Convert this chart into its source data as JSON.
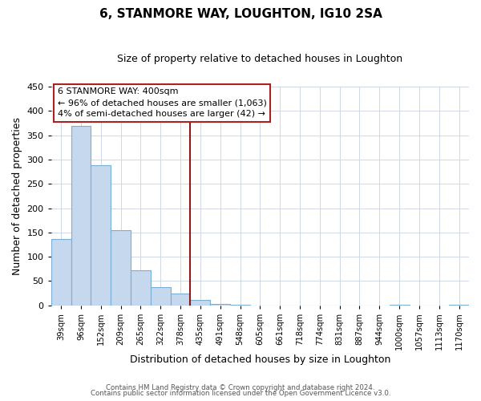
{
  "title": "6, STANMORE WAY, LOUGHTON, IG10 2SA",
  "subtitle": "Size of property relative to detached houses in Loughton",
  "xlabel": "Distribution of detached houses by size in Loughton",
  "ylabel": "Number of detached properties",
  "bar_color": "#c5d8ee",
  "bar_edge_color": "#7bafd4",
  "categories": [
    "39sqm",
    "96sqm",
    "152sqm",
    "209sqm",
    "265sqm",
    "322sqm",
    "378sqm",
    "435sqm",
    "491sqm",
    "548sqm",
    "605sqm",
    "661sqm",
    "718sqm",
    "774sqm",
    "831sqm",
    "887sqm",
    "944sqm",
    "1000sqm",
    "1057sqm",
    "1113sqm",
    "1170sqm"
  ],
  "values": [
    137,
    370,
    288,
    155,
    73,
    37,
    25,
    11,
    3,
    2,
    0,
    0,
    0,
    0,
    0,
    0,
    0,
    2,
    0,
    0,
    2
  ],
  "vline_x_idx": 6,
  "vline_color": "#8b1a1a",
  "ylim": [
    0,
    450
  ],
  "yticks": [
    0,
    50,
    100,
    150,
    200,
    250,
    300,
    350,
    400,
    450
  ],
  "ann_line1": "6 STANMORE WAY: 400sqm",
  "ann_line2": "← 96% of detached houses are smaller (1,063)",
  "ann_line3": "4% of semi-detached houses are larger (42) →",
  "footer_line1": "Contains HM Land Registry data © Crown copyright and database right 2024.",
  "footer_line2": "Contains public sector information licensed under the Open Government Licence v3.0.",
  "background_color": "#ffffff",
  "grid_color": "#d0d8e8",
  "title_fontsize": 11,
  "subtitle_fontsize": 9
}
